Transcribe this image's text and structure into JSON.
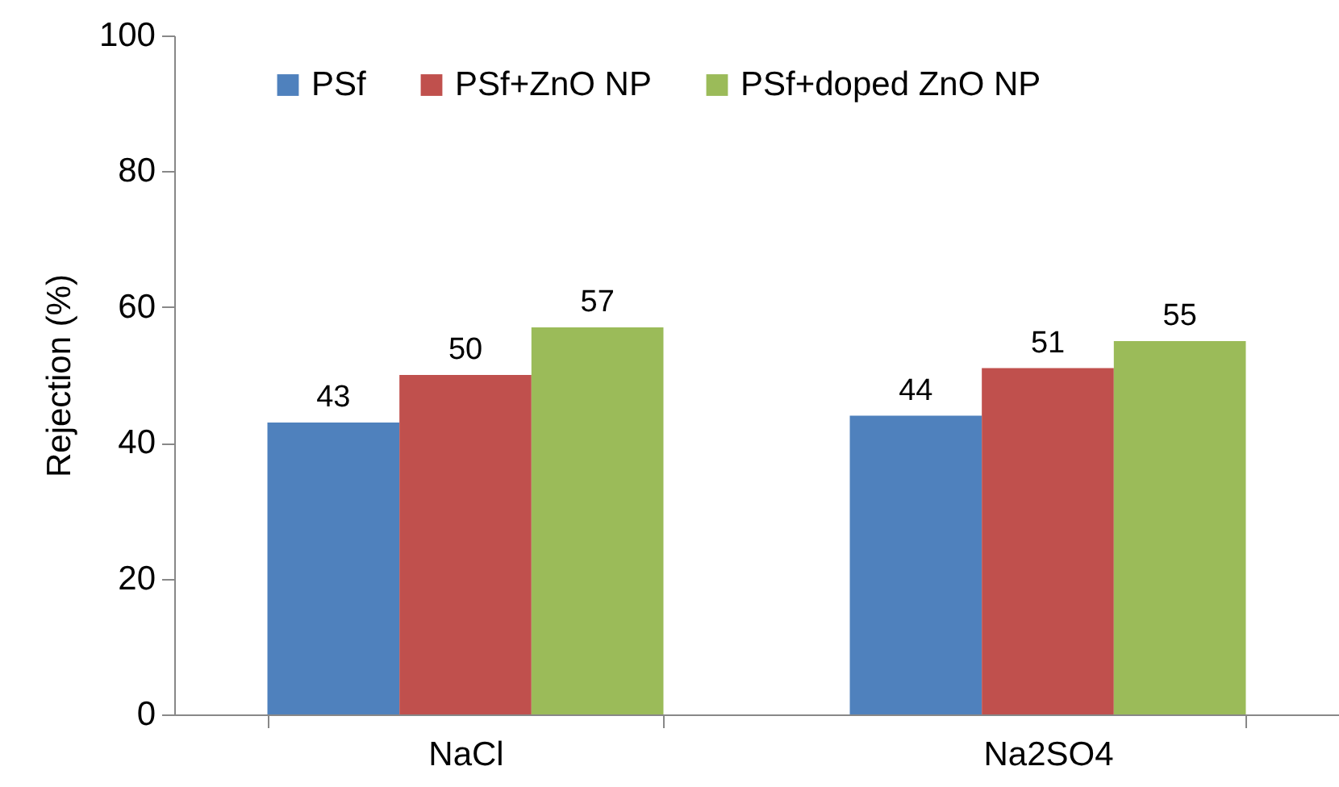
{
  "chart_data": {
    "type": "bar",
    "ylabel": "Rejection (%)",
    "categories": [
      "NaCl",
      "Na2SO4"
    ],
    "series": [
      {
        "name": "PSf",
        "color": "#4f81bd",
        "values": [
          43,
          44
        ]
      },
      {
        "name": "PSf+ZnO NP",
        "color": "#c0504d",
        "values": [
          50,
          51
        ]
      },
      {
        "name": "PSf+doped ZnO NP",
        "color": "#9bbb59",
        "values": [
          57,
          55
        ]
      }
    ],
    "ylim": [
      0,
      100
    ],
    "yticks": [
      0,
      20,
      40,
      60,
      80,
      100
    ],
    "data_labels": true,
    "legend": "top"
  }
}
